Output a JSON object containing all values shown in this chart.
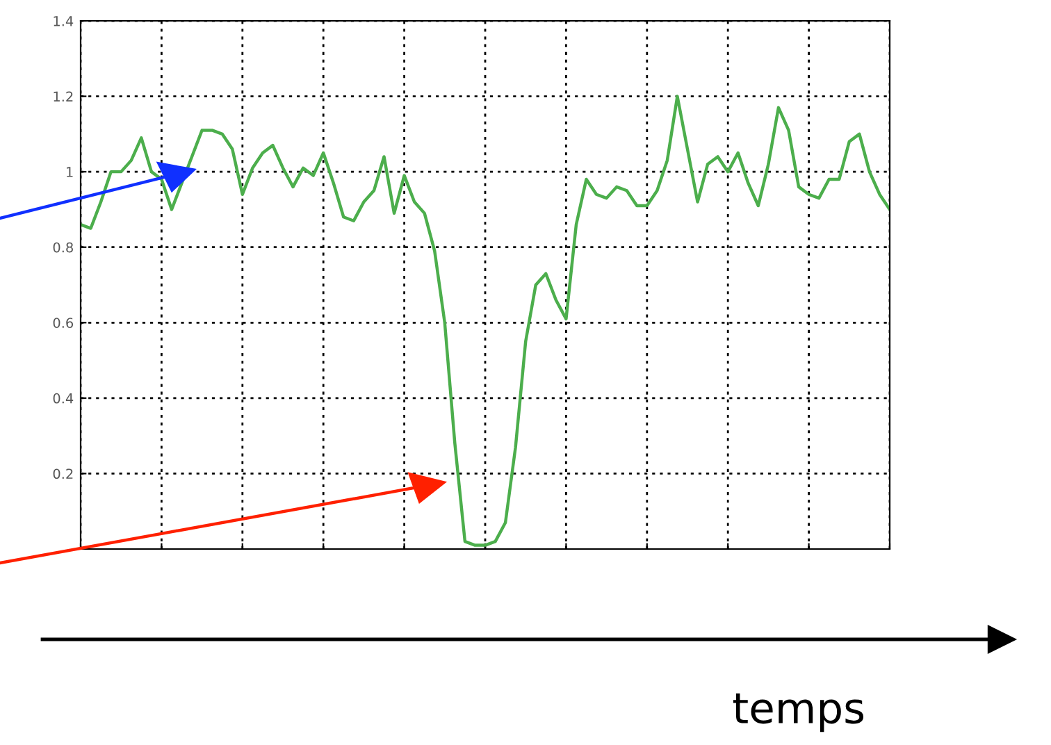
{
  "chart_data": {
    "type": "line",
    "xlabel": "temps",
    "categories": [
      null,
      null,
      null,
      null,
      null,
      null,
      null,
      null,
      null,
      null,
      null,
      null,
      null,
      null,
      null,
      null,
      null,
      null,
      null,
      null,
      null,
      null,
      null,
      null,
      null,
      null,
      null,
      null,
      null,
      null,
      null,
      null,
      null,
      null,
      null,
      null,
      null,
      null,
      null,
      null,
      null,
      null,
      null,
      null,
      null,
      null,
      null,
      null,
      null,
      null,
      null,
      null,
      null,
      null,
      null,
      null,
      null,
      null,
      null,
      null,
      null,
      null,
      null,
      null,
      null,
      null,
      null,
      null,
      null,
      null,
      null,
      null,
      null,
      null,
      null,
      null,
      null,
      null,
      null,
      null,
      null
    ],
    "series": [
      {
        "color": "#4cae4c",
        "values": [
          0.86,
          0.85,
          0.92,
          1.0,
          1.0,
          1.03,
          1.09,
          1.0,
          0.98,
          0.9,
          0.97,
          1.04,
          1.11,
          1.11,
          1.1,
          1.06,
          0.94,
          1.01,
          1.05,
          1.07,
          1.01,
          0.96,
          1.01,
          0.99,
          1.05,
          0.97,
          0.88,
          0.87,
          0.92,
          0.95,
          1.04,
          0.89,
          0.99,
          0.92,
          0.89,
          0.79,
          0.6,
          0.28,
          0.02,
          0.01,
          0.01,
          0.02,
          0.07,
          0.27,
          0.55,
          0.7,
          0.73,
          0.66,
          0.61,
          0.86,
          0.98,
          0.94,
          0.93,
          0.96,
          0.95,
          0.91,
          0.91,
          0.95,
          1.03,
          1.2,
          1.06,
          0.92,
          1.02,
          1.04,
          1.0,
          1.05,
          0.97,
          0.91,
          1.02,
          1.17,
          1.11,
          0.96,
          0.94,
          0.93,
          0.98,
          0.98,
          1.08,
          1.1,
          1.0,
          0.94,
          0.9
        ]
      }
    ],
    "ylim": [
      0,
      1.4
    ],
    "yticks": [
      {
        "value": 0.2,
        "label": "0.2"
      },
      {
        "value": 0.4,
        "label": "0.4"
      },
      {
        "value": 0.6,
        "label": "0.6"
      },
      {
        "value": 0.8,
        "label": "0.8"
      },
      {
        "value": 1,
        "label": "1"
      },
      {
        "value": 1.2,
        "label": "1.2"
      },
      {
        "value": 1.4,
        "label": "1.4"
      }
    ],
    "grid": true,
    "tick_labels": "y",
    "line_style": "solid",
    "marker": "none"
  }
}
